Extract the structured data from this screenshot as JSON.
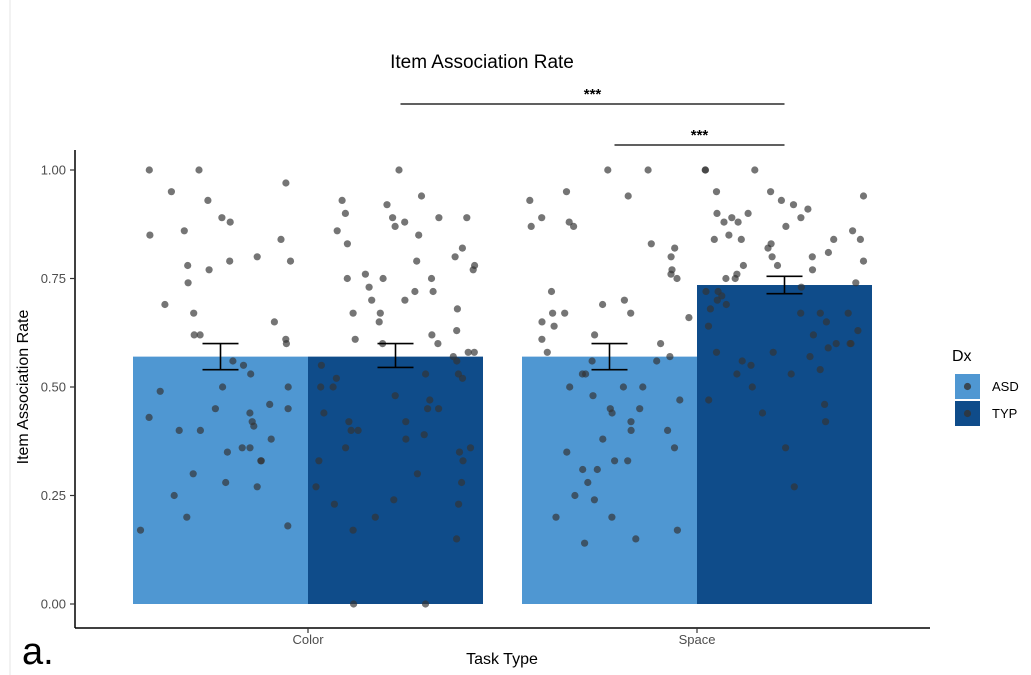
{
  "chart_data": {
    "type": "bar",
    "title": "Item Association Rate",
    "xlabel": "Task Type",
    "ylabel": "Item Association Rate",
    "categories": [
      "Color",
      "Space"
    ],
    "ylim": [
      0,
      1.0
    ],
    "yticks": [
      "0.00",
      "0.25",
      "0.50",
      "0.75",
      "1.00"
    ],
    "grid": false,
    "legend": {
      "title": "Dx",
      "position": "right",
      "entries": [
        "ASD",
        "TYP"
      ]
    },
    "series": [
      {
        "name": "ASD",
        "color": "#4f97d2",
        "values": [
          0.57,
          0.57
        ],
        "error": [
          [
            0.54,
            0.6
          ],
          [
            0.54,
            0.6
          ]
        ],
        "points": [
          [
            0.17,
            0.18,
            0.2,
            0.25,
            0.27,
            0.28,
            0.3,
            0.33,
            0.33,
            0.35,
            0.36,
            0.36,
            0.38,
            0.4,
            0.4,
            0.41,
            0.42,
            0.43,
            0.44,
            0.45,
            0.45,
            0.46,
            0.49,
            0.5,
            0.5,
            0.53,
            0.55,
            0.56,
            0.6,
            0.61,
            0.62,
            0.62,
            0.65,
            0.67,
            0.69,
            0.74,
            0.77,
            0.78,
            0.79,
            0.79,
            0.8,
            0.84,
            0.85,
            0.86,
            0.88,
            0.89,
            0.93,
            0.95,
            0.97,
            1.0,
            1.0
          ],
          [
            0.14,
            0.15,
            0.17,
            0.2,
            0.2,
            0.24,
            0.25,
            0.28,
            0.31,
            0.31,
            0.33,
            0.33,
            0.35,
            0.36,
            0.38,
            0.4,
            0.4,
            0.42,
            0.44,
            0.45,
            0.45,
            0.47,
            0.48,
            0.5,
            0.5,
            0.5,
            0.53,
            0.53,
            0.56,
            0.56,
            0.57,
            0.58,
            0.6,
            0.61,
            0.62,
            0.64,
            0.65,
            0.66,
            0.67,
            0.67,
            0.67,
            0.69,
            0.7,
            0.72,
            0.75,
            0.76,
            0.77,
            0.8,
            0.82,
            0.83,
            0.87,
            0.87,
            0.88,
            0.89,
            0.93,
            0.94,
            0.95,
            1.0,
            1.0
          ]
        ]
      },
      {
        "name": "TYP",
        "color": "#0f4c8a",
        "values": [
          0.57,
          0.735
        ],
        "error": [
          [
            0.545,
            0.6
          ],
          [
            0.715,
            0.755
          ]
        ],
        "points": [
          [
            0.0,
            0.0,
            0.15,
            0.17,
            0.2,
            0.23,
            0.23,
            0.24,
            0.27,
            0.28,
            0.3,
            0.33,
            0.33,
            0.35,
            0.36,
            0.36,
            0.38,
            0.39,
            0.4,
            0.4,
            0.42,
            0.42,
            0.44,
            0.45,
            0.45,
            0.47,
            0.48,
            0.5,
            0.5,
            0.52,
            0.52,
            0.53,
            0.53,
            0.55,
            0.56,
            0.57,
            0.58,
            0.58,
            0.6,
            0.6,
            0.61,
            0.62,
            0.63,
            0.65,
            0.67,
            0.67,
            0.68,
            0.7,
            0.7,
            0.72,
            0.72,
            0.73,
            0.75,
            0.75,
            0.75,
            0.76,
            0.77,
            0.78,
            0.79,
            0.8,
            0.82,
            0.83,
            0.85,
            0.86,
            0.87,
            0.88,
            0.89,
            0.89,
            0.89,
            0.9,
            0.92,
            0.93,
            0.94,
            1.0
          ],
          [
            0.27,
            0.36,
            0.42,
            0.44,
            0.46,
            0.47,
            0.5,
            0.53,
            0.53,
            0.54,
            0.55,
            0.56,
            0.57,
            0.58,
            0.58,
            0.59,
            0.6,
            0.6,
            0.6,
            0.62,
            0.63,
            0.64,
            0.65,
            0.67,
            0.67,
            0.67,
            0.68,
            0.69,
            0.7,
            0.71,
            0.72,
            0.72,
            0.73,
            0.74,
            0.75,
            0.75,
            0.76,
            0.77,
            0.78,
            0.78,
            0.79,
            0.8,
            0.8,
            0.81,
            0.82,
            0.83,
            0.84,
            0.84,
            0.84,
            0.84,
            0.85,
            0.86,
            0.87,
            0.88,
            0.88,
            0.89,
            0.89,
            0.9,
            0.9,
            0.91,
            0.92,
            0.93,
            0.94,
            0.95,
            0.95,
            1.0,
            1.0,
            1.0
          ]
        ]
      }
    ],
    "annotations": [
      {
        "text": "***",
        "from": [
          "Color",
          "TYP"
        ],
        "to": [
          "Space",
          "TYP"
        ]
      },
      {
        "text": "***",
        "from": [
          "Space",
          "ASD"
        ],
        "to": [
          "Space",
          "TYP"
        ]
      }
    ],
    "panel_label": "a."
  }
}
